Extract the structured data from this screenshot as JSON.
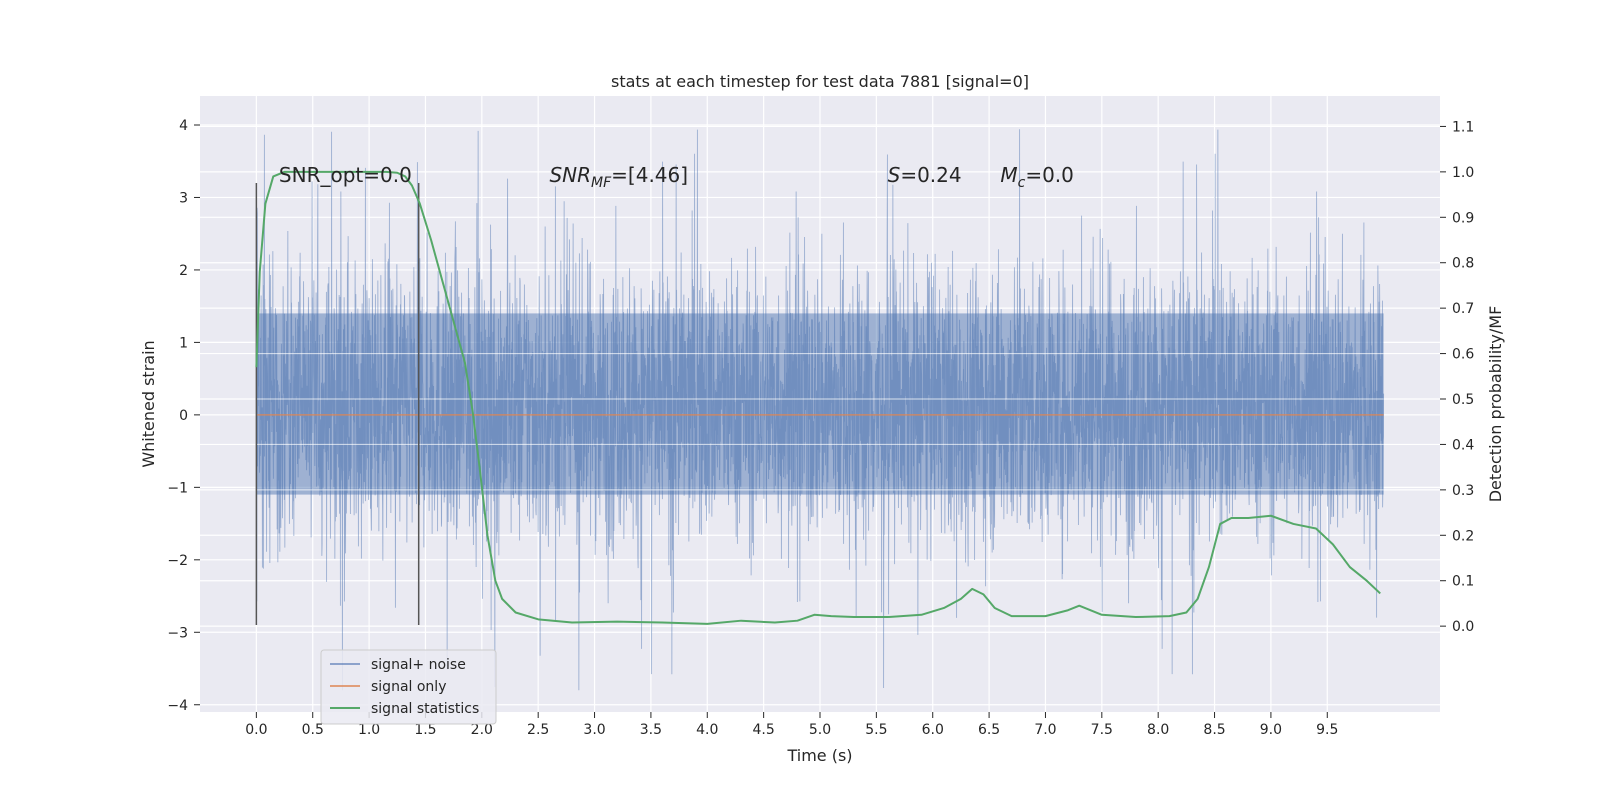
{
  "chart_data": {
    "type": "line",
    "title": "stats at each timestep for test data 7881 [signal=0]",
    "xlabel": "Time (s)",
    "ylabel": "Whitened strain",
    "y2label": "Detection probability/MF",
    "xlim": [
      -0.5,
      10.5
    ],
    "ylim": [
      -4.1,
      4.4
    ],
    "y2lim": [
      -0.189,
      1.167
    ],
    "x_ticks": [
      0.0,
      0.5,
      1.0,
      1.5,
      2.0,
      2.5,
      3.0,
      3.5,
      4.0,
      4.5,
      5.0,
      5.5,
      6.0,
      6.5,
      7.0,
      7.5,
      8.0,
      8.5,
      9.0,
      9.5
    ],
    "x_tick_labels": [
      "0.0",
      "0.5",
      "1.0",
      "1.5",
      "2.0",
      "2.5",
      "3.0",
      "3.5",
      "4.0",
      "4.5",
      "5.0",
      "5.5",
      "6.0",
      "6.5",
      "7.0",
      "7.5",
      "8.0",
      "8.5",
      "9.0",
      "9.5"
    ],
    "y_ticks": [
      4,
      3,
      2,
      1,
      0,
      -1,
      -2,
      -3,
      -4
    ],
    "y_tick_labels": [
      "4",
      "3",
      "2",
      "1",
      "0",
      "−1",
      "−2",
      "−3",
      "−4"
    ],
    "y2_ticks": [
      1.1,
      1.0,
      0.9,
      0.8,
      0.7,
      0.6,
      0.5,
      0.4,
      0.3,
      0.2,
      0.1,
      0.0
    ],
    "y2_tick_labels": [
      "1.1",
      "1.0",
      "0.9",
      "0.8",
      "0.7",
      "0.6",
      "0.5",
      "0.4",
      "0.3",
      "0.2",
      "0.1",
      "0.0"
    ],
    "grid": true,
    "legend_position": "lower-left",
    "series": [
      {
        "name": "signal+ noise",
        "color": "#4c72b0",
        "kind": "noise",
        "x_range": [
          0,
          10
        ],
        "band": [
          -1.1,
          1.4
        ],
        "peak_range": [
          -3.8,
          4.05
        ]
      },
      {
        "name": "signal only",
        "color": "#dd8452",
        "kind": "line",
        "x": [
          0,
          10
        ],
        "y": [
          0,
          0
        ]
      },
      {
        "name": "signal statistics",
        "color": "#55a868",
        "kind": "line",
        "axis": "right",
        "x": [
          0.0,
          0.03,
          0.08,
          0.15,
          0.25,
          0.4,
          0.6,
          0.8,
          1.0,
          1.15,
          1.25,
          1.32,
          1.38,
          1.45,
          1.55,
          1.65,
          1.75,
          1.85,
          1.92,
          1.98,
          2.05,
          2.12,
          2.18,
          2.3,
          2.5,
          2.8,
          3.2,
          3.6,
          4.0,
          4.3,
          4.6,
          4.8,
          4.95,
          5.1,
          5.3,
          5.6,
          5.9,
          6.1,
          6.25,
          6.35,
          6.45,
          6.55,
          6.7,
          7.0,
          7.2,
          7.3,
          7.5,
          7.8,
          8.1,
          8.25,
          8.35,
          8.45,
          8.55,
          8.65,
          8.8,
          9.0,
          9.2,
          9.4,
          9.55,
          9.7,
          9.85,
          9.97
        ],
        "y": [
          0.57,
          0.78,
          0.93,
          0.99,
          1.0,
          1.0,
          1.0,
          1.0,
          1.0,
          1.0,
          0.998,
          0.99,
          0.97,
          0.93,
          0.85,
          0.76,
          0.67,
          0.58,
          0.47,
          0.35,
          0.2,
          0.1,
          0.06,
          0.03,
          0.015,
          0.008,
          0.01,
          0.008,
          0.005,
          0.012,
          0.008,
          0.012,
          0.025,
          0.022,
          0.02,
          0.02,
          0.025,
          0.04,
          0.06,
          0.082,
          0.07,
          0.04,
          0.022,
          0.022,
          0.035,
          0.045,
          0.025,
          0.02,
          0.022,
          0.03,
          0.06,
          0.13,
          0.225,
          0.238,
          0.238,
          0.243,
          0.225,
          0.215,
          0.18,
          0.13,
          0.1,
          0.072
        ]
      }
    ],
    "vertical_markers": [
      {
        "x": 0.0,
        "y": [
          -2.9,
          3.2
        ]
      },
      {
        "x": 1.44,
        "y": [
          -2.9,
          3.2
        ]
      }
    ],
    "annotations": [
      {
        "key": "snr_opt",
        "text": "SNR_opt=0.0",
        "x": 0.2,
        "y": 3.2
      },
      {
        "key": "snr_mf",
        "text": "SNR",
        "sub": "MF",
        "rest": "=[4.46]",
        "x": 2.6,
        "y": 3.2
      },
      {
        "key": "s",
        "text": "S",
        "rest": "=0.24",
        "x": 5.6,
        "y": 3.2
      },
      {
        "key": "mc",
        "text": "M",
        "sub": "c",
        "rest": "=0.0",
        "x": 6.6,
        "y": 3.2
      }
    ]
  }
}
